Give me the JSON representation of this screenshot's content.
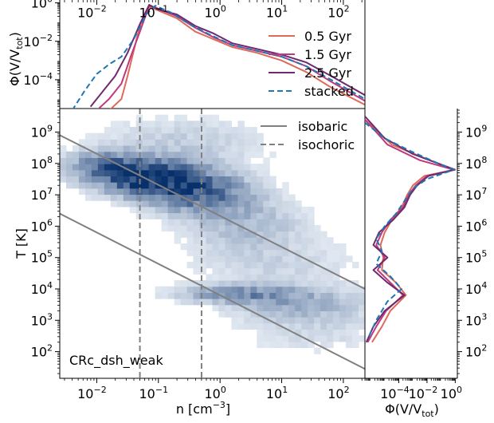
{
  "chart_data": {
    "type": "heatmap",
    "model_label": "CRc_dsh_weak",
    "main": {
      "xlabel": "n [cm",
      "xlabel_sup": "−3",
      "xlabel_end": "]",
      "ylabel": "T [K]",
      "x_range_log10": [
        -2.6,
        2.35
      ],
      "y_range_log10": [
        1.15,
        9.75
      ],
      "x_ticks": [
        {
          "log10": -2,
          "base": "10",
          "exp": "−2"
        },
        {
          "log10": -1,
          "base": "10",
          "exp": "−1"
        },
        {
          "log10": 0,
          "base": "10",
          "exp": "0"
        },
        {
          "log10": 1,
          "base": "10",
          "exp": "1"
        },
        {
          "log10": 2,
          "base": "10",
          "exp": "2"
        }
      ],
      "y_ticks": [
        {
          "log10": 2,
          "base": "10",
          "exp": "2"
        },
        {
          "log10": 3,
          "base": "10",
          "exp": "3"
        },
        {
          "log10": 4,
          "base": "10",
          "exp": "4"
        },
        {
          "log10": 5,
          "base": "10",
          "exp": "5"
        },
        {
          "log10": 6,
          "base": "10",
          "exp": "6"
        },
        {
          "log10": 7,
          "base": "10",
          "exp": "7"
        },
        {
          "log10": 8,
          "base": "10",
          "exp": "8"
        },
        {
          "log10": 9,
          "base": "10",
          "exp": "9"
        }
      ],
      "isobaric_lines": [
        {
          "log10_n": [
            -2.6,
            2.35
          ],
          "log10_T": [
            8.9,
            4.0
          ]
        },
        {
          "log10_n": [
            -2.6,
            2.35
          ],
          "log10_T": [
            6.4,
            1.45
          ]
        }
      ],
      "isochoric_lines_log10_n": [
        -1.3,
        -0.3
      ],
      "legend": [
        "isobaric",
        "isochoric"
      ],
      "density_blobs": [
        {
          "cx": -1.1,
          "cy": 7.55,
          "sx": 0.55,
          "sy": 0.35,
          "w": 1.0
        },
        {
          "cx": -0.35,
          "cy": 7.05,
          "sx": 0.55,
          "sy": 0.4,
          "w": 0.6
        },
        {
          "cx": -1.8,
          "cy": 7.95,
          "sx": 0.45,
          "sy": 0.3,
          "w": 0.45
        },
        {
          "cx": 0.4,
          "cy": 6.1,
          "sx": 0.6,
          "sy": 0.55,
          "w": 0.2
        },
        {
          "cx": 0.3,
          "cy": 3.85,
          "sx": 0.6,
          "sy": 0.18,
          "w": 0.42
        },
        {
          "cx": 1.3,
          "cy": 3.55,
          "sx": 0.7,
          "sy": 0.35,
          "w": 0.22
        },
        {
          "cx": 0.9,
          "cy": 4.8,
          "sx": 0.9,
          "sy": 0.6,
          "w": 0.09
        },
        {
          "cx": -0.6,
          "cy": 8.6,
          "sx": 0.9,
          "sy": 0.6,
          "w": 0.12
        },
        {
          "cx": 1.5,
          "cy": 2.7,
          "sx": 0.8,
          "sy": 0.5,
          "w": 0.08
        }
      ]
    },
    "top": {
      "ylabel": "Φ(V/V",
      "ylabel_sub": "tot",
      "ylabel_end": ")",
      "y_range_log10": [
        -5.5,
        0.15
      ],
      "y_ticks": [
        {
          "log10": 0,
          "base": "10",
          "exp": "0"
        },
        {
          "log10": -2,
          "base": "10",
          "exp": "−2"
        },
        {
          "log10": -4,
          "base": "10",
          "exp": "−4"
        }
      ],
      "x_ticks": [
        {
          "log10": -2,
          "base": "10",
          "exp": "−2"
        },
        {
          "log10": -1,
          "base": "10",
          "exp": "−1"
        },
        {
          "log10": 0,
          "base": "10",
          "exp": "0"
        },
        {
          "log10": 1,
          "base": "10",
          "exp": "1"
        },
        {
          "log10": 2,
          "base": "10",
          "exp": "2"
        }
      ],
      "series": [
        {
          "name": "0.5 Gyr",
          "color": "#e06a5a",
          "dashed": false,
          "x": [
            -1.8,
            -1.6,
            -1.5,
            -1.4,
            -1.3,
            -1.15,
            -1.0,
            -0.7,
            -0.4,
            -0.1,
            0.2,
            0.6,
            1.0,
            1.4,
            1.8,
            2.35
          ],
          "y": [
            -5.6,
            -5.0,
            -3.8,
            -2.5,
            -1.2,
            -0.2,
            -0.4,
            -0.8,
            -1.5,
            -1.9,
            -2.3,
            -2.6,
            -3.0,
            -3.6,
            -4.4,
            -5.3
          ]
        },
        {
          "name": "1.5 Gyr",
          "color": "#c0397a",
          "dashed": false,
          "x": [
            -2.0,
            -1.8,
            -1.6,
            -1.45,
            -1.3,
            -1.15,
            -1.0,
            -0.7,
            -0.4,
            -0.1,
            0.2,
            0.6,
            1.0,
            1.4,
            1.8,
            2.35
          ],
          "y": [
            -5.6,
            -5.0,
            -4.2,
            -2.8,
            -1.5,
            -0.15,
            -0.3,
            -0.7,
            -1.3,
            -1.8,
            -2.2,
            -2.5,
            -2.8,
            -3.3,
            -4.1,
            -5.1
          ]
        },
        {
          "name": "2.5 Gyr",
          "color": "#6e2a6e",
          "dashed": false,
          "x": [
            -2.1,
            -1.9,
            -1.7,
            -1.5,
            -1.3,
            -1.15,
            -1.0,
            -0.7,
            -0.4,
            -0.1,
            0.2,
            0.6,
            1.0,
            1.4,
            1.8,
            2.35
          ],
          "y": [
            -5.4,
            -4.6,
            -3.8,
            -2.6,
            -1.1,
            -0.1,
            -0.35,
            -0.6,
            -1.2,
            -1.6,
            -2.1,
            -2.4,
            -2.7,
            -3.1,
            -3.8,
            -4.8
          ]
        },
        {
          "name": "stacked",
          "color": "#1f77b4",
          "dashed": true,
          "x": [
            -2.4,
            -2.2,
            -2.0,
            -1.8,
            -1.6,
            -1.4,
            -1.2,
            -1.05,
            -0.8,
            -0.5,
            -0.2,
            0.2,
            0.6,
            1.0,
            1.4,
            1.8,
            2.35
          ],
          "y": [
            -5.6,
            -4.6,
            -3.7,
            -3.2,
            -2.8,
            -1.9,
            -0.6,
            -0.15,
            -0.5,
            -1.1,
            -1.6,
            -2.2,
            -2.5,
            -2.8,
            -3.3,
            -4.0,
            -5.0
          ]
        }
      ]
    },
    "right": {
      "xlabel": "Φ(V/V",
      "xlabel_sub": "tot",
      "xlabel_end": ")",
      "x_range_log10": [
        -6.4,
        0.15
      ],
      "x_ticks": [
        {
          "log10": -4,
          "base": "10",
          "exp": "−4"
        },
        {
          "log10": -2,
          "base": "10",
          "exp": "−2"
        },
        {
          "log10": 0,
          "base": "10",
          "exp": "0"
        }
      ],
      "y_ticks": [
        {
          "log10": 2,
          "base": "10",
          "exp": "2"
        },
        {
          "log10": 3,
          "base": "10",
          "exp": "3"
        },
        {
          "log10": 4,
          "base": "10",
          "exp": "4"
        },
        {
          "log10": 5,
          "base": "10",
          "exp": "5"
        },
        {
          "log10": 6,
          "base": "10",
          "exp": "6"
        },
        {
          "log10": 7,
          "base": "10",
          "exp": "7"
        },
        {
          "log10": 8,
          "base": "10",
          "exp": "8"
        },
        {
          "log10": 9,
          "base": "10",
          "exp": "9"
        }
      ],
      "series": [
        {
          "name": "0.5 Gyr",
          "color": "#e06a5a",
          "dashed": false,
          "log10_T": [
            9.4,
            8.6,
            8.1,
            7.8,
            7.6,
            7.3,
            7.0,
            6.6,
            6.2,
            5.8,
            5.4,
            5.0,
            4.6,
            4.2,
            3.8,
            3.3,
            2.8,
            2.3
          ],
          "log10_phi": [
            -6.4,
            -4.5,
            -1.8,
            0.0,
            -2.2,
            -3.0,
            -3.4,
            -3.8,
            -4.5,
            -5.0,
            -5.3,
            -5.1,
            -5.2,
            -4.2,
            -3.5,
            -4.6,
            -5.2,
            -5.9
          ]
        },
        {
          "name": "1.5 Gyr",
          "color": "#c0397a",
          "dashed": false,
          "log10_T": [
            9.4,
            8.6,
            8.1,
            7.8,
            7.6,
            7.3,
            7.0,
            6.6,
            6.2,
            5.8,
            5.4,
            5.0,
            4.6,
            4.2,
            3.8,
            3.3,
            2.8,
            2.3
          ],
          "log10_phi": [
            -6.4,
            -4.8,
            -2.5,
            -0.1,
            -2.0,
            -2.8,
            -3.3,
            -3.7,
            -4.6,
            -5.2,
            -5.6,
            -5.0,
            -5.5,
            -4.6,
            -3.7,
            -4.9,
            -5.6,
            -6.2
          ]
        },
        {
          "name": "2.5 Gyr",
          "color": "#6e2a6e",
          "dashed": false,
          "log10_T": [
            9.5,
            8.8,
            8.3,
            7.8,
            7.6,
            7.3,
            7.0,
            6.6,
            6.2,
            5.8,
            5.4,
            5.0,
            4.6,
            4.2,
            3.8,
            3.3,
            2.8,
            2.3
          ],
          "log10_phi": [
            -6.4,
            -5.0,
            -3.0,
            -0.05,
            -1.9,
            -2.7,
            -3.2,
            -3.6,
            -4.4,
            -5.4,
            -5.8,
            -4.8,
            -5.8,
            -4.8,
            -3.6,
            -5.0,
            -5.8,
            -6.3
          ]
        },
        {
          "name": "stacked",
          "color": "#1f77b4",
          "dashed": true,
          "log10_T": [
            9.3,
            8.8,
            8.4,
            8.0,
            7.8,
            7.5,
            7.2,
            6.8,
            6.4,
            6.0,
            5.6,
            5.2,
            4.8,
            4.4,
            4.0,
            3.6,
            3.0,
            2.4
          ],
          "log10_phi": [
            -6.4,
            -5.0,
            -3.2,
            -1.2,
            -0.1,
            -2.0,
            -3.0,
            -3.6,
            -4.2,
            -5.0,
            -5.6,
            -5.2,
            -5.6,
            -4.6,
            -3.8,
            -4.8,
            -5.6,
            -6.2
          ]
        }
      ]
    }
  }
}
